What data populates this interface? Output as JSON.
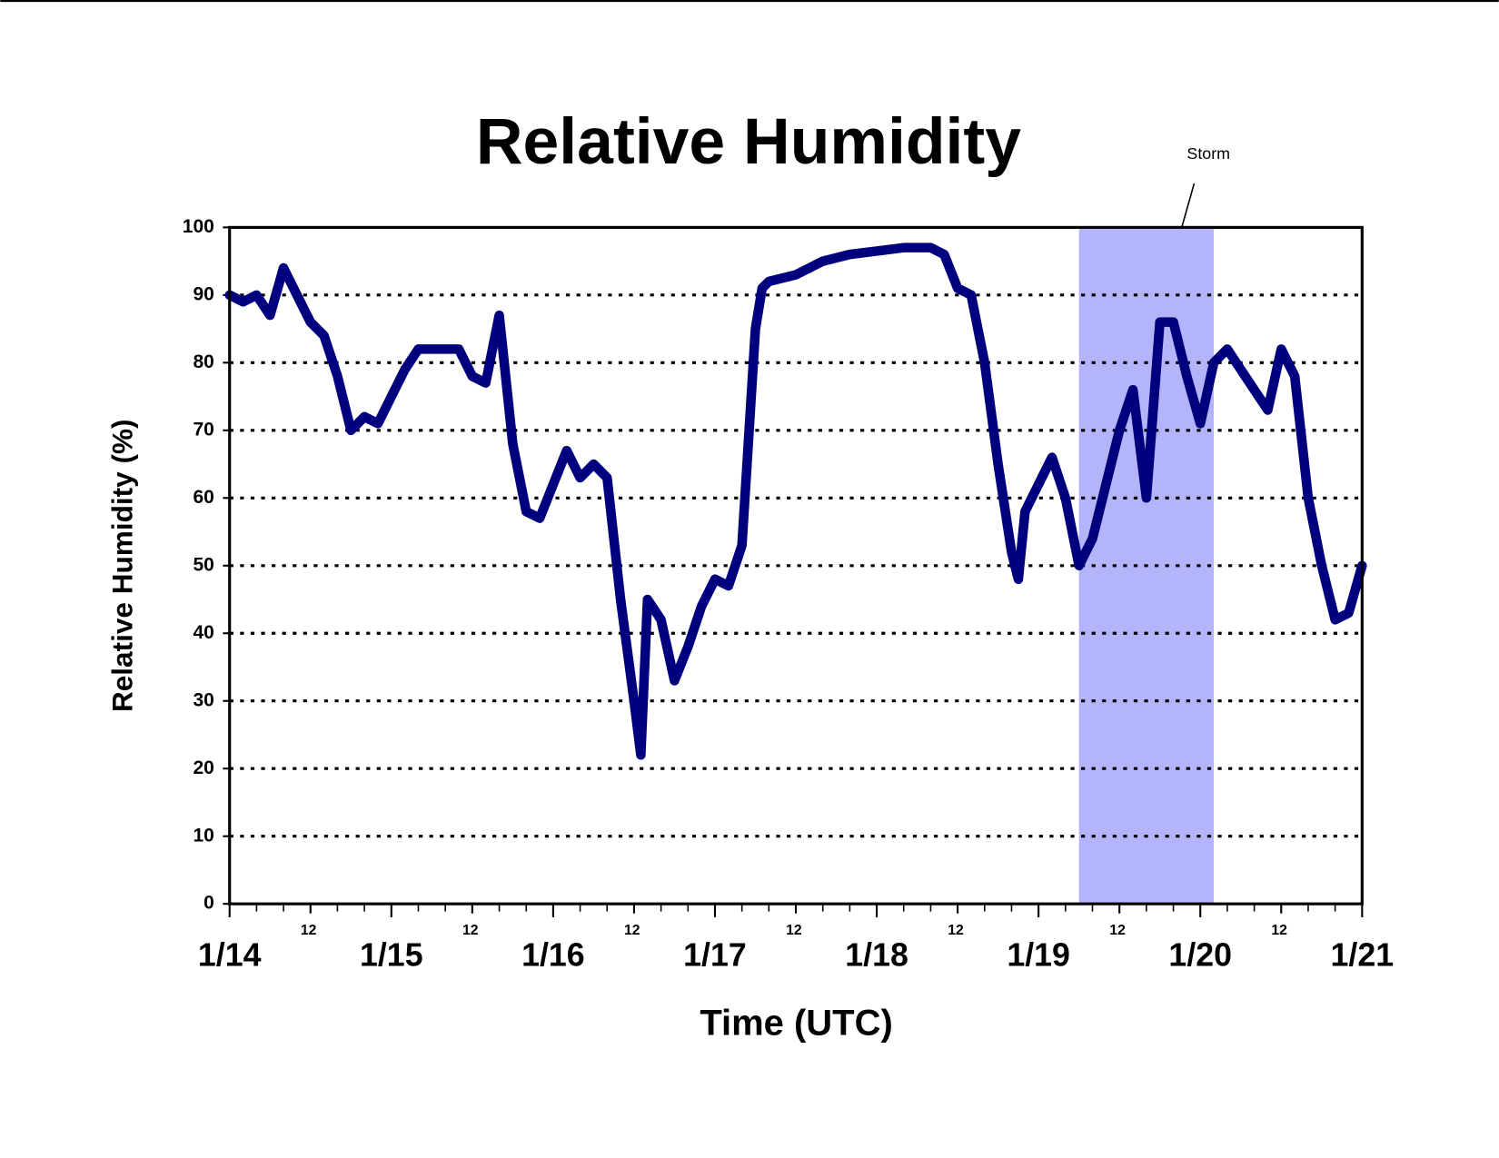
{
  "chart_data": {
    "type": "line",
    "title": "Relative Humidity",
    "x_label": "Time (UTC)",
    "y_label": "Relative Humidity (%)",
    "annotation": {
      "text": "Storm",
      "x_start": 126,
      "x_end": 146,
      "color": "#b4b4fa"
    },
    "xlim": [
      0,
      168
    ],
    "xticks": [
      {
        "value": 0,
        "label": "1/14"
      },
      {
        "value": 12,
        "label": "12"
      },
      {
        "value": 24,
        "label": "1/15"
      },
      {
        "value": 36,
        "label": "12"
      },
      {
        "value": 48,
        "label": "1/16"
      },
      {
        "value": 60,
        "label": "12"
      },
      {
        "value": 72,
        "label": "1/17"
      },
      {
        "value": 84,
        "label": "12"
      },
      {
        "value": 96,
        "label": "1/18"
      },
      {
        "value": 108,
        "label": "12"
      },
      {
        "value": 120,
        "label": "1/19"
      },
      {
        "value": 132,
        "label": "12"
      },
      {
        "value": 144,
        "label": "1/20"
      },
      {
        "value": 156,
        "label": "12"
      },
      {
        "value": 168,
        "label": "1/21"
      }
    ],
    "xminorticks": [
      4,
      8,
      16,
      20,
      28,
      32,
      40,
      44,
      52,
      56,
      64,
      68,
      76,
      80,
      88,
      92,
      100,
      104,
      112,
      116,
      124,
      128,
      136,
      140,
      148,
      152,
      160,
      164
    ],
    "ylim": [
      0,
      100
    ],
    "yticks": [
      0,
      10,
      20,
      30,
      40,
      50,
      60,
      70,
      80,
      90,
      100
    ],
    "grid": true,
    "series": [
      {
        "name": "Relative Humidity",
        "color": "#00007f",
        "x": [
          0,
          2,
          4,
          6,
          8,
          10,
          12,
          14,
          16,
          18,
          20,
          22,
          24,
          26,
          28,
          30,
          32,
          34,
          36,
          38,
          40,
          42,
          44,
          46,
          48,
          50,
          52,
          54,
          56,
          58,
          60,
          61,
          62,
          64,
          66,
          68,
          70,
          72,
          74,
          76,
          78,
          79,
          80,
          84,
          88,
          92,
          96,
          100,
          104,
          106,
          108,
          110,
          112,
          114,
          116,
          117,
          118,
          120,
          122,
          124,
          126,
          128,
          130,
          132,
          134,
          136,
          138,
          140,
          142,
          144,
          146,
          148,
          150,
          152,
          154,
          156,
          158,
          160,
          162,
          164,
          166,
          168
        ],
        "values": [
          90,
          89,
          90,
          87,
          94,
          90,
          86,
          84,
          78,
          70,
          72,
          71,
          75,
          79,
          82,
          82,
          82,
          82,
          78,
          77,
          87,
          68,
          58,
          57,
          62,
          67,
          63,
          65,
          63,
          45,
          30,
          22,
          45,
          42,
          33,
          38,
          44,
          48,
          47,
          53,
          85,
          91,
          92,
          93,
          95,
          96,
          96.5,
          97,
          97,
          96,
          91,
          90,
          80,
          65,
          52,
          48,
          58,
          62,
          66,
          60,
          50,
          54,
          62,
          70,
          76,
          60,
          86,
          86,
          78,
          71,
          80,
          82,
          79,
          76,
          73,
          82,
          78,
          60,
          50,
          42,
          43,
          50
        ]
      }
    ]
  }
}
